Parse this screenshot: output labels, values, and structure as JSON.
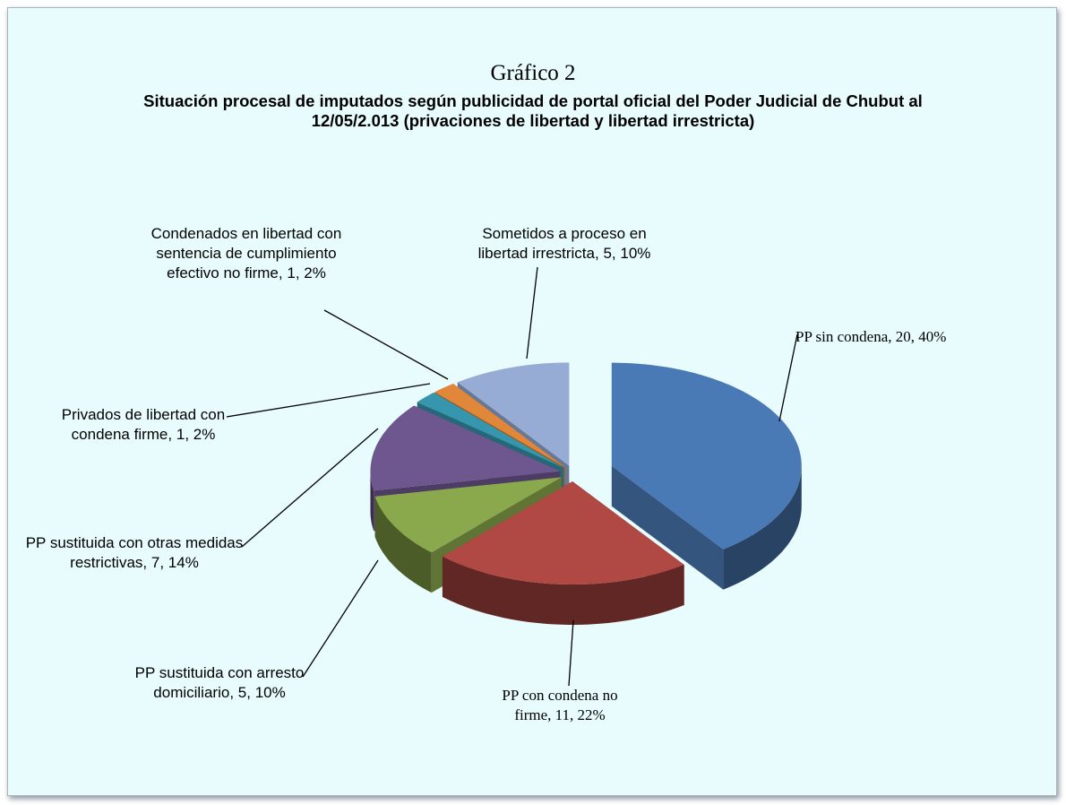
{
  "chart_data": {
    "type": "pie3d",
    "title": "Gráfico 2",
    "subtitle": "Situación procesal de imputados según publicidad de portal oficial del Poder Judicial de Chubut al 12/05/2.013 (privaciones de libertad y libertad irrestricta)",
    "categories": [
      "PP sin condena",
      "PP con condena no firme",
      "PP sustituida con arresto domiciliario",
      "PP sustituida con otras medidas restrictivas",
      "Privados de libertad con condena firme",
      "Condenados en libertad con sentencia de cumplimiento efectivo no firme",
      "Sometidos a proceso en libertad irrestricta"
    ],
    "values": [
      20,
      11,
      5,
      7,
      1,
      1,
      5
    ],
    "percent_labels": [
      "40%",
      "22%",
      "10%",
      "14%",
      "2%",
      "2%",
      "10%"
    ],
    "colors": [
      "#4a7ab5",
      "#b04844",
      "#8aa84c",
      "#6e568f",
      "#3596ad",
      "#e0873a",
      "#96acd4"
    ]
  }
}
